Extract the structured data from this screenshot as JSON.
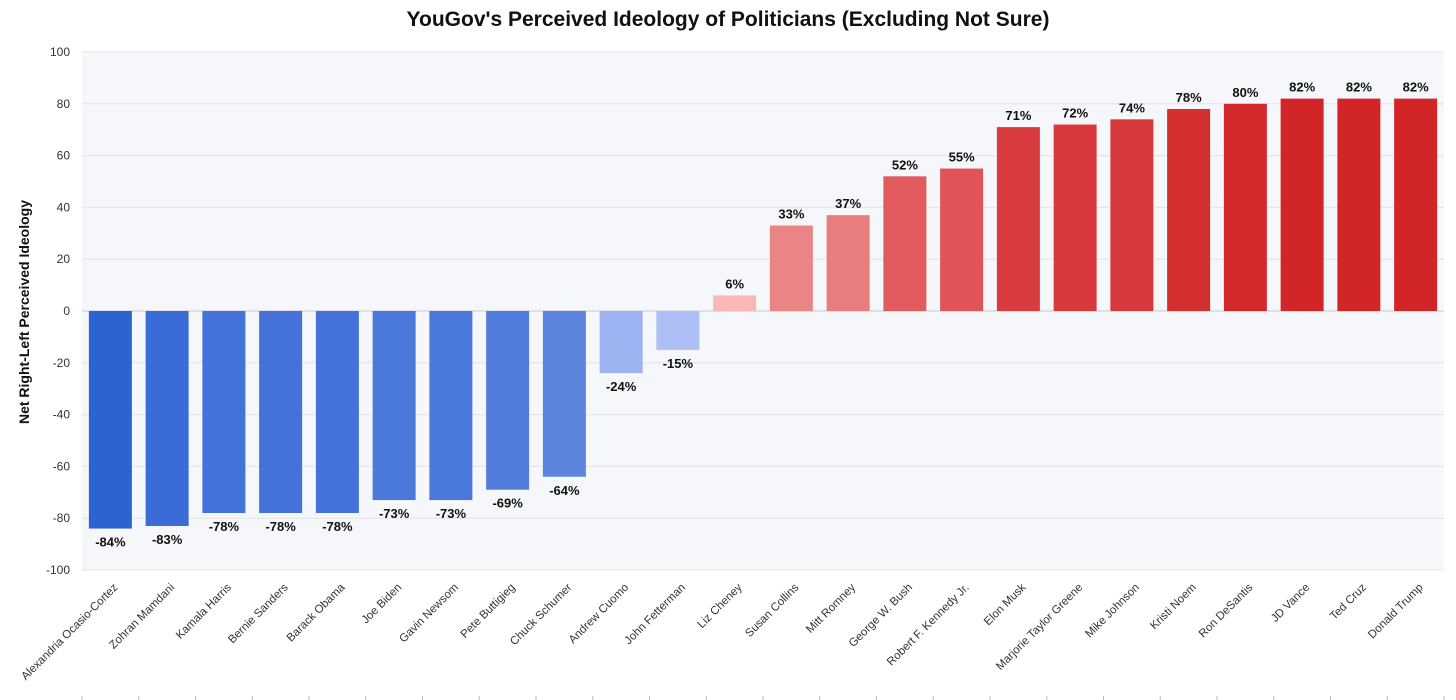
{
  "chart_data": {
    "type": "bar",
    "title": "YouGov's Perceived Ideology of Politicians (Excluding Not Sure)",
    "xlabel": "",
    "ylabel": "Net Right-Left Perceived Ideology",
    "ylim": [
      -100,
      100
    ],
    "yticks": [
      100,
      80,
      60,
      40,
      20,
      0,
      -20,
      -40,
      -60,
      -80,
      -100
    ],
    "grid": true,
    "categories": [
      "Alexandria Ocasio-Cortez",
      "Zohran Mamdani",
      "Kamala Harris",
      "Bernie Sanders",
      "Barack Obama",
      "Joe Biden",
      "Gavin Newsom",
      "Pete Buttigieg",
      "Chuck Schumer",
      "Andrew Cuomo",
      "John Fetterman",
      "Liz Cheney",
      "Susan Collins",
      "Mitt Romney",
      "George W. Bush",
      "Robert F. Kennedy Jr.",
      "Elon Musk",
      "Marjorie Taylor Greene",
      "Mike Johnson",
      "Kristi Noem",
      "Ron DeSantis",
      "JD Vance",
      "Ted Cruz",
      "Donald Trump"
    ],
    "values": [
      -84,
      -83,
      -78,
      -78,
      -78,
      -73,
      -73,
      -69,
      -64,
      -24,
      -15,
      6,
      33,
      37,
      52,
      55,
      71,
      72,
      74,
      78,
      80,
      82,
      82,
      82
    ],
    "data_labels": [
      "-84%",
      "-83%",
      "-78%",
      "-78%",
      "-78%",
      "-73%",
      "-73%",
      "-69%",
      "-64%",
      "-24%",
      "-15%",
      "6%",
      "33%",
      "37%",
      "52%",
      "55%",
      "71%",
      "72%",
      "74%",
      "78%",
      "80%",
      "82%",
      "82%",
      "82%"
    ],
    "colors": [
      "#2c63d1",
      "#3a6bd6",
      "#4472d9",
      "#4472d9",
      "#4472d9",
      "#4b78db",
      "#4b78db",
      "#527ddc",
      "#5c84de",
      "#9db3f2",
      "#adbff5",
      "#f8b8b8",
      "#ea8585",
      "#e97c7c",
      "#e05a5e",
      "#e05458",
      "#d83c3e",
      "#d83a3c",
      "#d6383b",
      "#d32f30",
      "#d22a2c",
      "#d12527",
      "#d12527",
      "#d12527"
    ],
    "plot_background": "#f6f7fa",
    "grid_color": "#e2e4ea"
  }
}
